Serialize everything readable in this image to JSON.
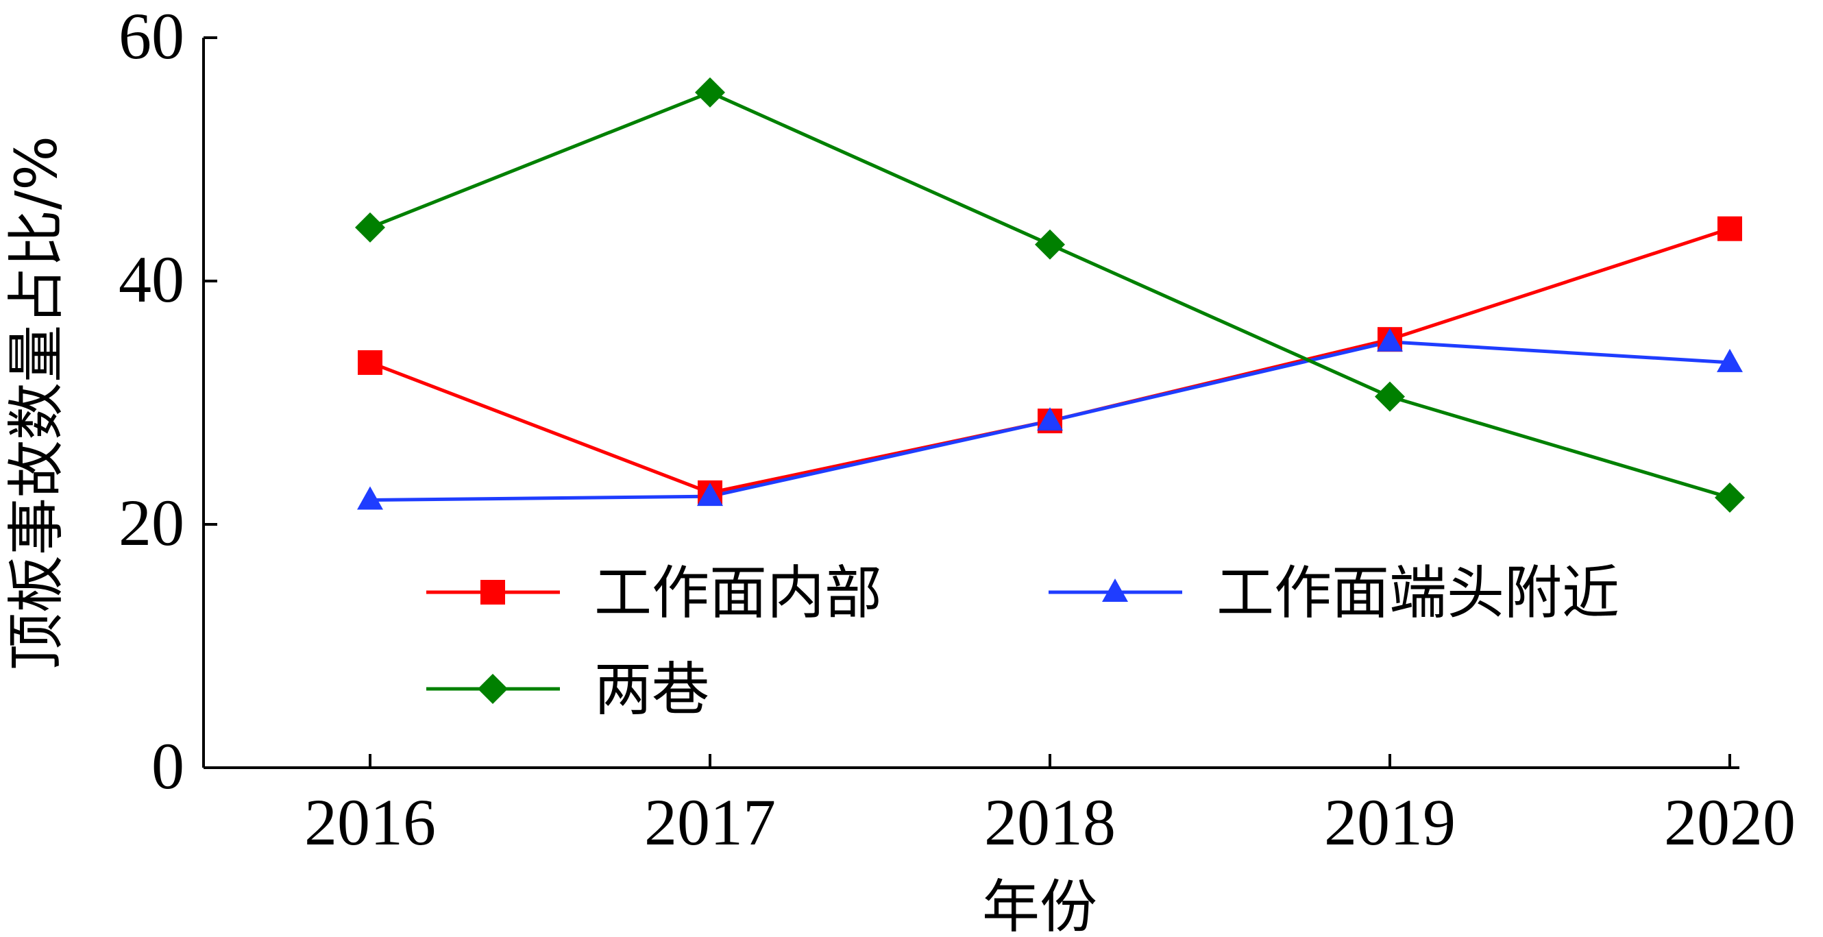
{
  "chart_data": {
    "type": "line",
    "title": "",
    "xlabel": "年份",
    "ylabel": "顶板事故数量占比/%",
    "x": [
      "2016",
      "2017",
      "2018",
      "2019",
      "2020"
    ],
    "ylim": [
      0,
      60
    ],
    "yticks": [
      0,
      20,
      40,
      60
    ],
    "grid": false,
    "legend_position": "bottom-center",
    "series": [
      {
        "name": "工作面内部",
        "color": "#ff0000",
        "marker": "square",
        "values": [
          33.3,
          22.6,
          28.5,
          35.2,
          44.3
        ]
      },
      {
        "name": "工作面端头附近",
        "color": "#1f3dff",
        "marker": "triangle",
        "values": [
          22.0,
          22.3,
          28.5,
          35.0,
          33.3
        ]
      },
      {
        "name": "两巷",
        "color": "#008000",
        "marker": "diamond",
        "values": [
          44.4,
          55.5,
          43.0,
          30.5,
          22.2
        ]
      }
    ]
  }
}
